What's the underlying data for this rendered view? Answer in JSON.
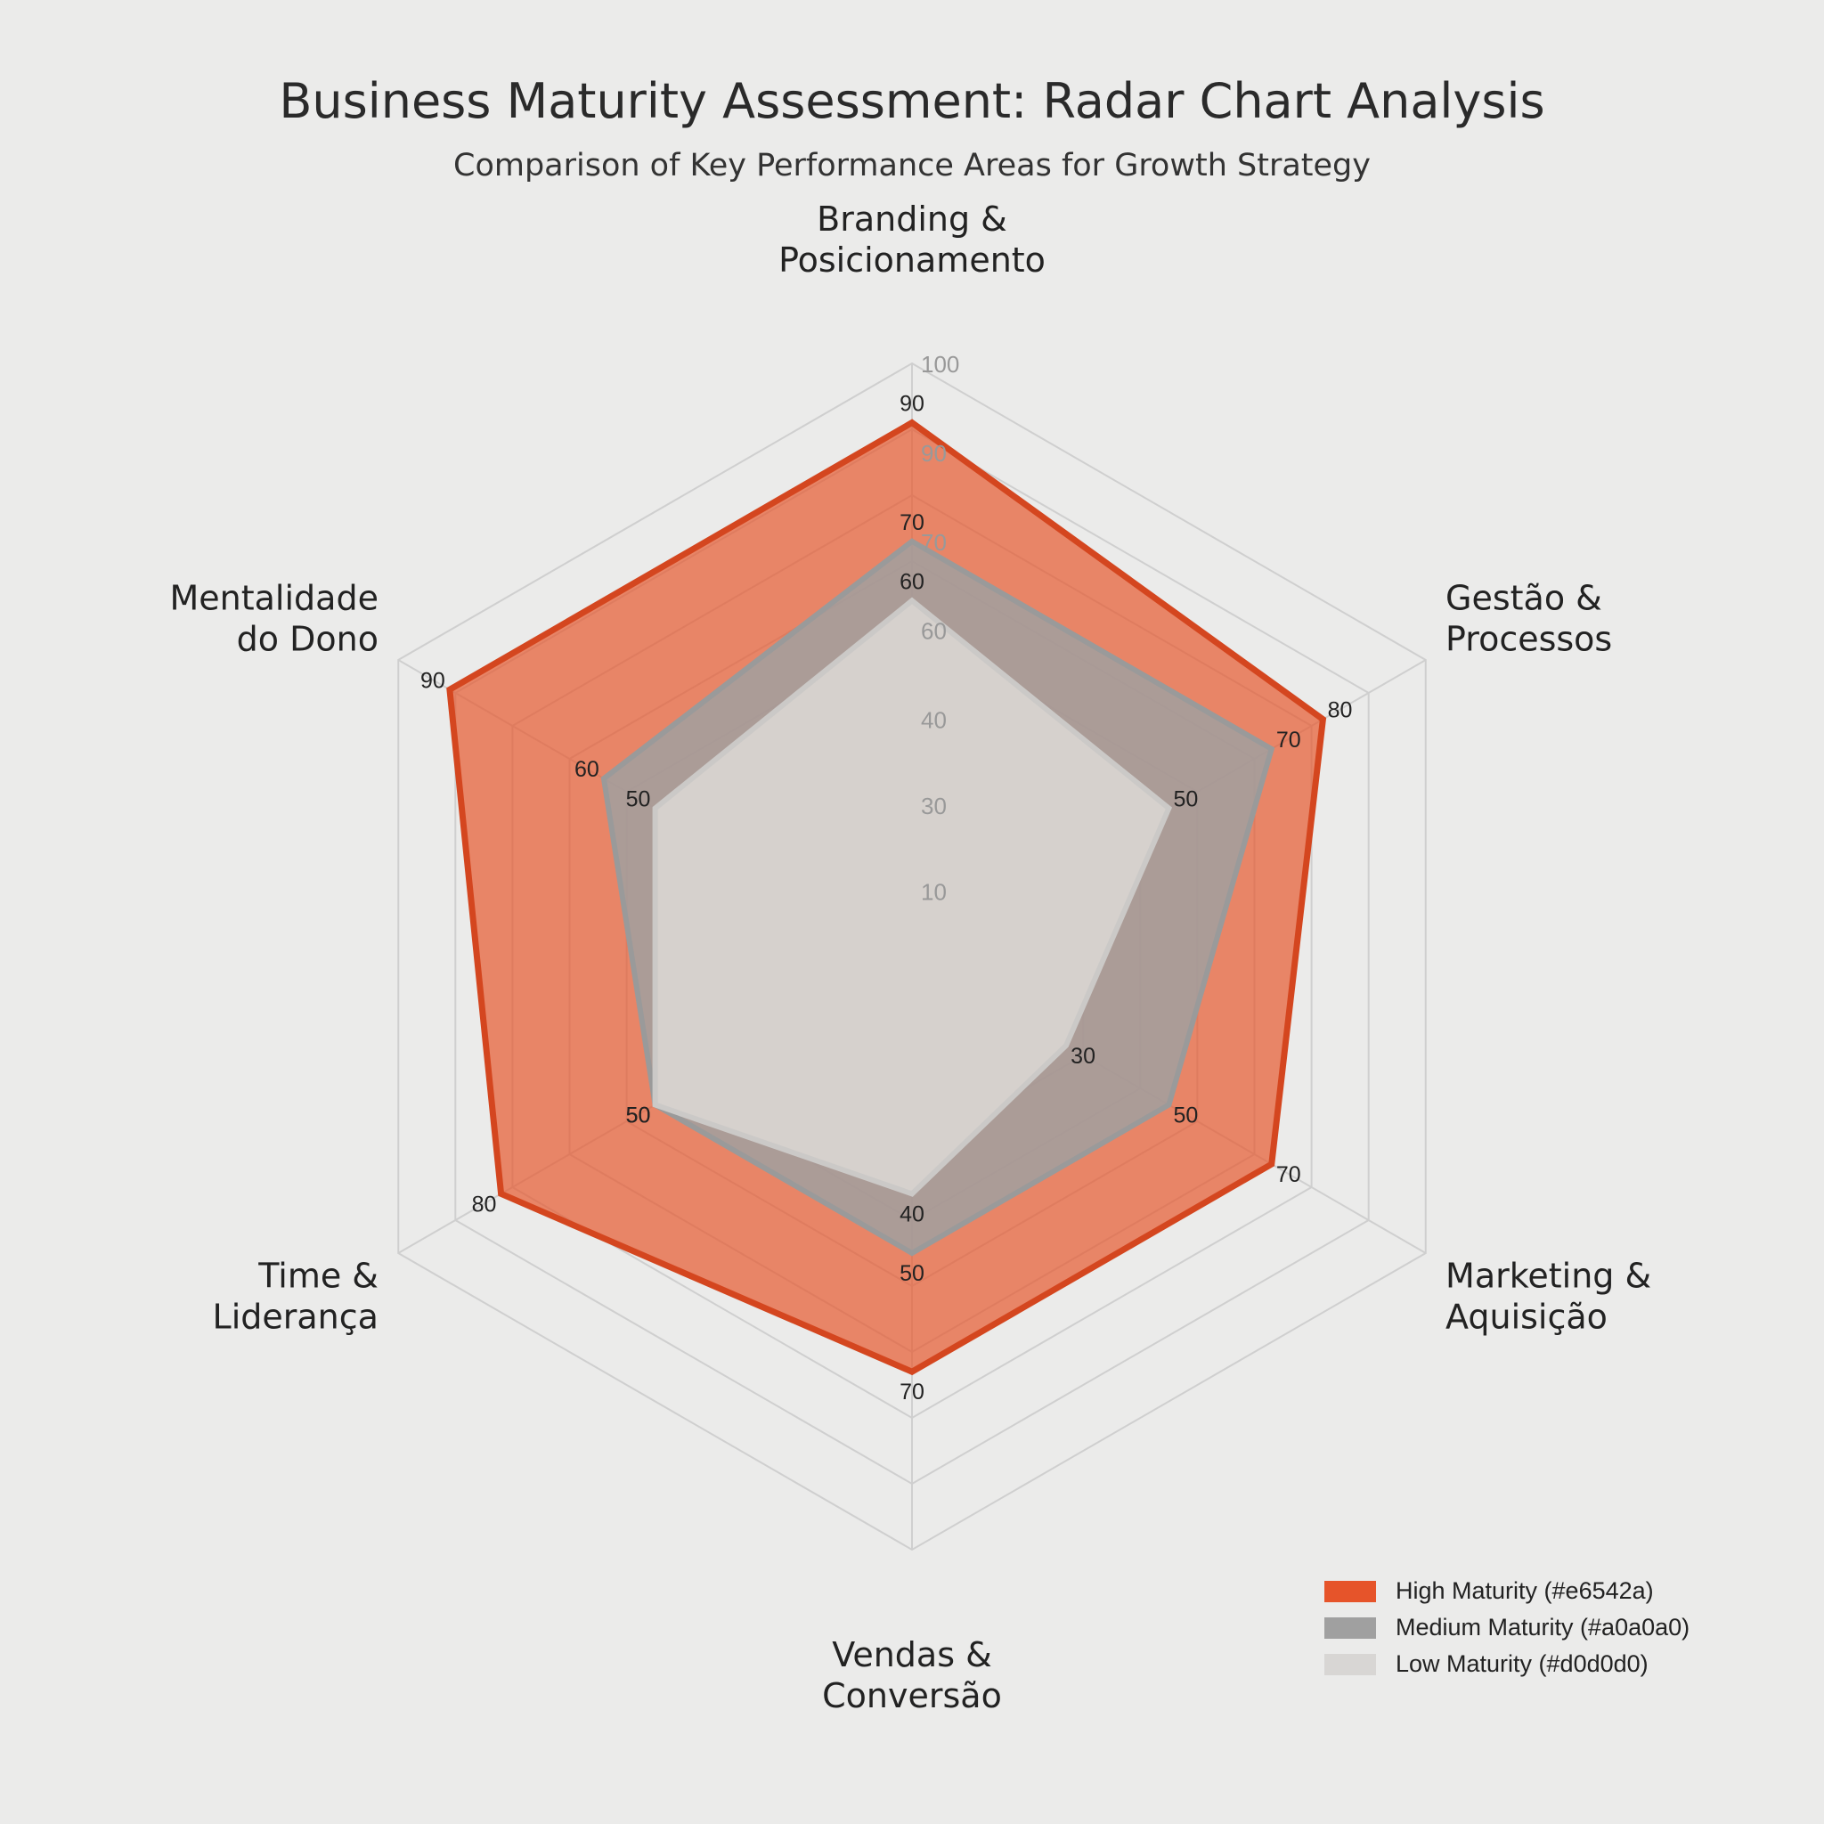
{
  "chart_data": {
    "type": "radar",
    "title": "Business Maturity Assessment: Radar Chart Analysis",
    "subtitle": "Comparison of Key Performance Areas for Growth Strategy",
    "axes": [
      "Branding & Posicionamento",
      "Gestão & Processos",
      "Marketing & Aquisição",
      "Vendas & Conversão",
      "Time & Liderança",
      "Mentalidade do Dono"
    ],
    "axis_label_lines": [
      [
        "Branding &",
        "Posicionamento"
      ],
      [
        "Gestão &",
        "Processos"
      ],
      [
        "Marketing &",
        "Aquisição"
      ],
      [
        "Vendas &",
        "Conversão"
      ],
      [
        "Time &",
        "Liderança"
      ],
      [
        "Mentalidade",
        "do Dono"
      ]
    ],
    "radial_tick_labels": [
      "100",
      "90",
      "70",
      "60",
      "40",
      "30",
      "10"
    ],
    "range": [
      0,
      100
    ],
    "grid": true,
    "legend_position": "bottom-right",
    "series": [
      {
        "name": "High Maturity (#e6542a)",
        "color": "#e6542a",
        "values": [
          90,
          80,
          70,
          70,
          80,
          90
        ]
      },
      {
        "name": "Medium Maturity (#a0a0a0)",
        "color": "#a0a0a0",
        "values": [
          70,
          70,
          50,
          50,
          50,
          60
        ]
      },
      {
        "name": "Low Maturity (#d0d0d0)",
        "color": "#d0d0d0",
        "values": [
          60,
          50,
          30,
          40,
          50,
          50
        ]
      }
    ]
  }
}
